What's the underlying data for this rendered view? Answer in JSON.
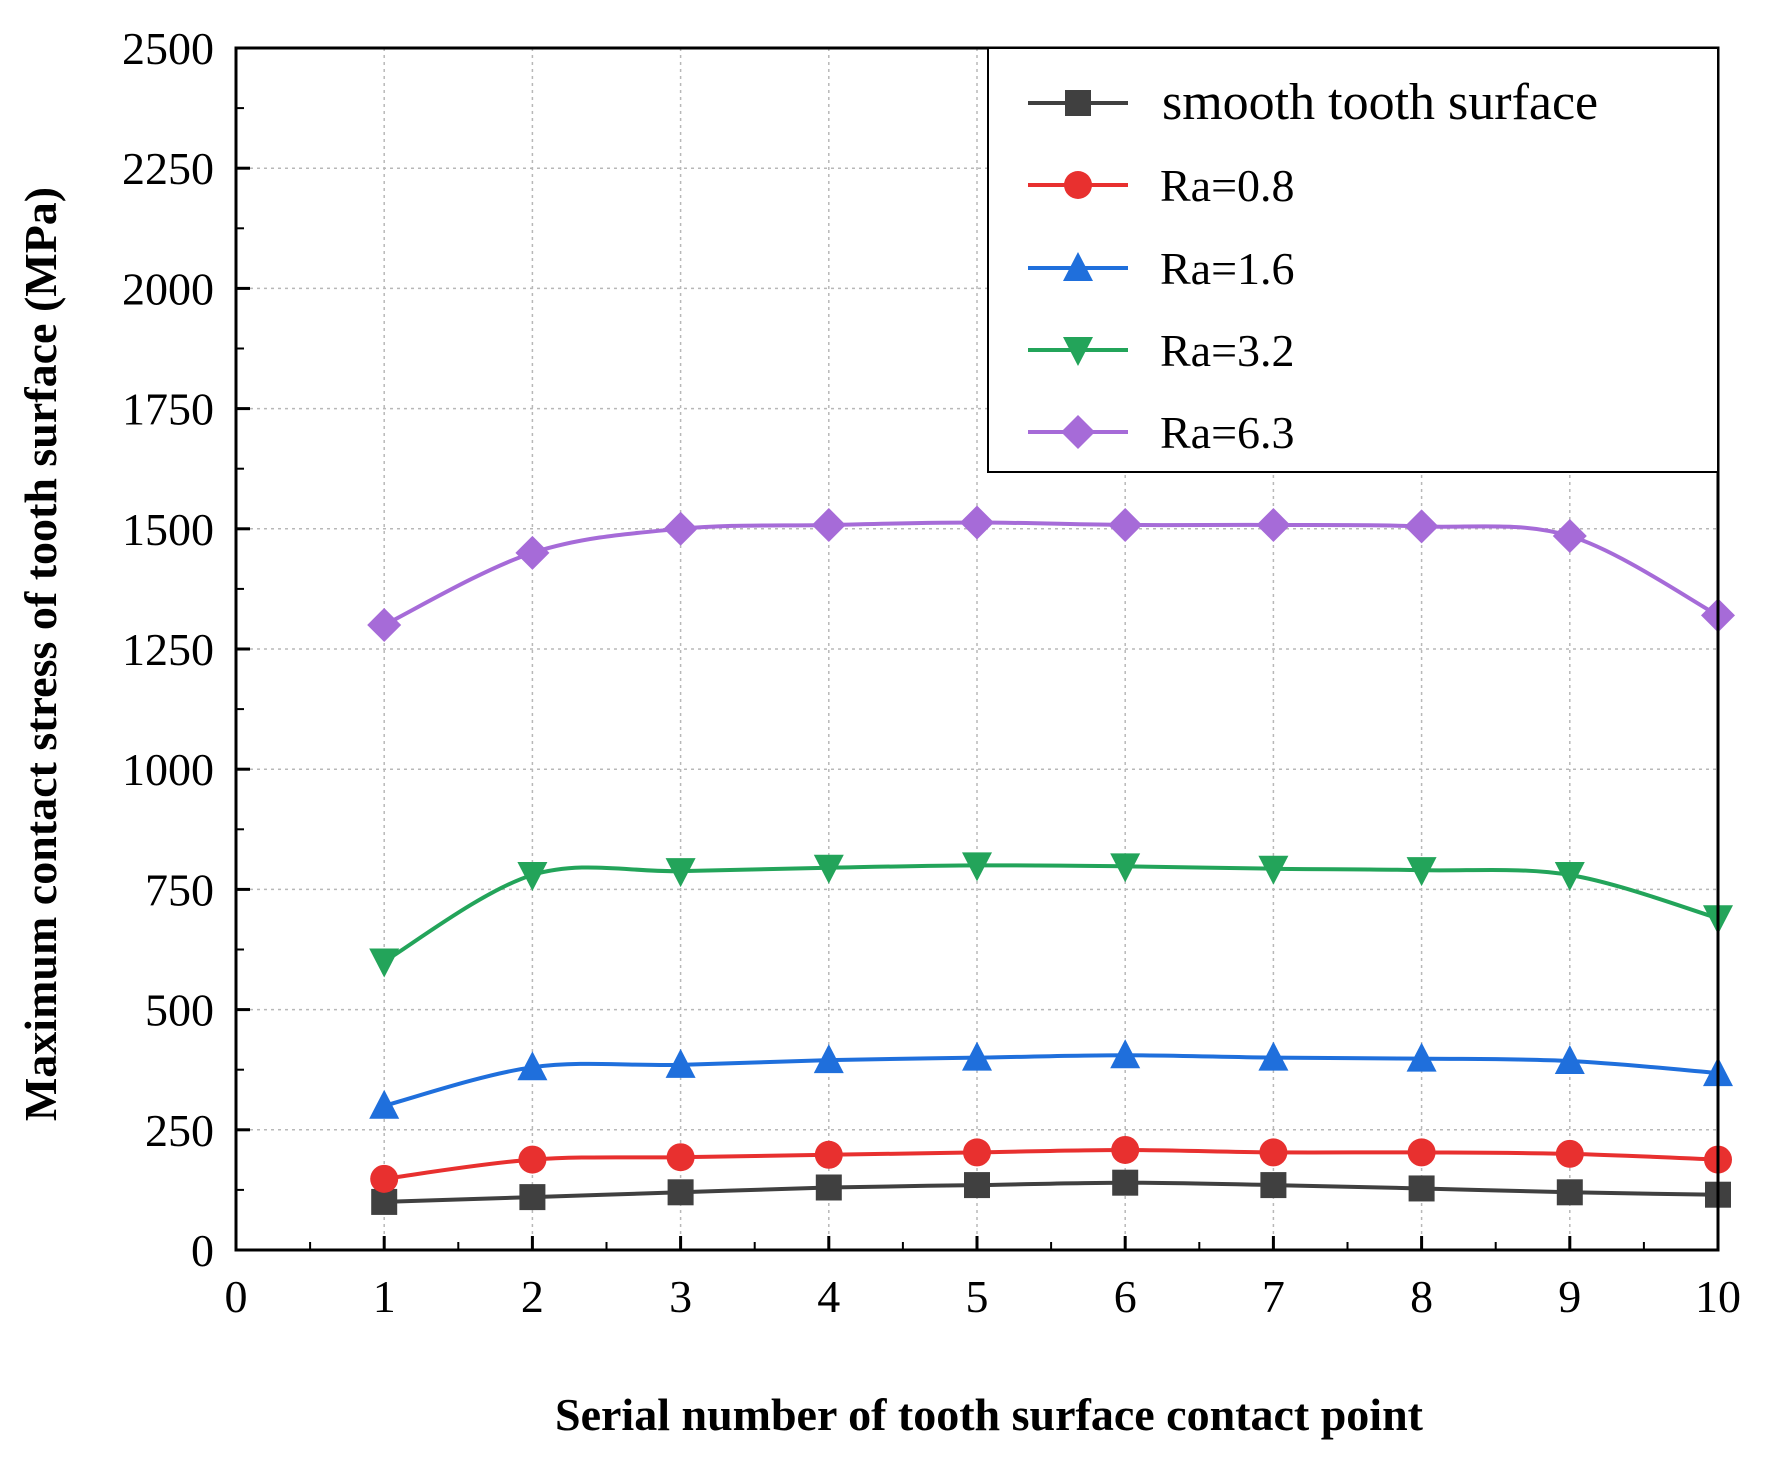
{
  "chart_data": {
    "type": "line",
    "title": "",
    "xlabel": "Serial number of tooth surface contact point",
    "ylabel": "Maximum contact stress of tooth surface (MPa)",
    "xlim": [
      0,
      10
    ],
    "ylim": [
      0,
      2500
    ],
    "xticks": [
      "0",
      "1",
      "2",
      "3",
      "4",
      "5",
      "6",
      "7",
      "8",
      "9",
      "10"
    ],
    "yticks": [
      "0",
      "250",
      "500",
      "750",
      "1000",
      "1250",
      "1500",
      "1750",
      "2000",
      "2250",
      "2500"
    ],
    "grid": true,
    "legend_position": "top-right",
    "x": [
      1,
      2,
      3,
      4,
      5,
      6,
      7,
      8,
      9,
      10
    ],
    "series": [
      {
        "name": "smooth tooth surface",
        "color": "#404040",
        "marker": "square",
        "values": [
          100,
          110,
          120,
          130,
          135,
          140,
          135,
          128,
          120,
          115
        ]
      },
      {
        "name": "Ra=0.8",
        "color": "#e8302f",
        "marker": "circle",
        "values": [
          148,
          188,
          193,
          198,
          203,
          208,
          203,
          203,
          200,
          188
        ]
      },
      {
        "name": "Ra=1.6",
        "color": "#1f6fdc",
        "marker": "triangle-up",
        "values": [
          300,
          380,
          385,
          395,
          400,
          405,
          400,
          398,
          393,
          368
        ]
      },
      {
        "name": "Ra=3.2",
        "color": "#23a45a",
        "marker": "triangle-down",
        "values": [
          600,
          780,
          788,
          795,
          800,
          798,
          793,
          790,
          780,
          690
        ]
      },
      {
        "name": "Ra=6.3",
        "color": "#a66bd8",
        "marker": "diamond",
        "values": [
          1300,
          1450,
          1500,
          1508,
          1513,
          1508,
          1508,
          1505,
          1485,
          1320
        ]
      }
    ]
  }
}
